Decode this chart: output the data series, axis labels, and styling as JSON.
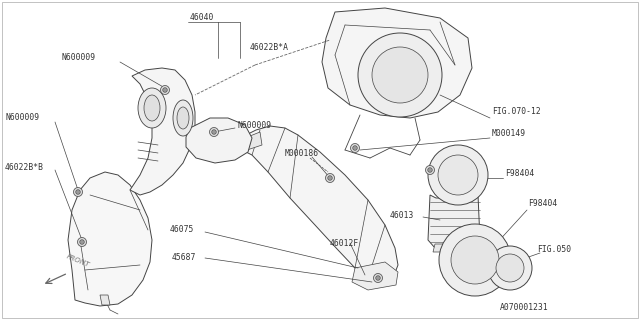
{
  "bg": "#ffffff",
  "lc": "#444444",
  "tc": "#333333",
  "lw": 0.7,
  "fs": 5.8,
  "fig_w": 6.4,
  "fig_h": 3.2,
  "dpi": 100,
  "labels": [
    [
      "46040",
      200,
      18
    ],
    [
      "46022B*A",
      248,
      48
    ],
    [
      "N600009",
      117,
      55
    ],
    [
      "N600009",
      232,
      122
    ],
    [
      "N600009",
      10,
      118
    ],
    [
      "46022B*B",
      10,
      165
    ],
    [
      "M000186",
      310,
      152
    ],
    [
      "46075",
      183,
      228
    ],
    [
      "45687",
      188,
      258
    ],
    [
      "46012F",
      335,
      240
    ],
    [
      "FIG.070-12",
      492,
      113
    ],
    [
      "M000149",
      492,
      135
    ],
    [
      "F98404",
      505,
      175
    ],
    [
      "46013",
      420,
      213
    ],
    [
      "F98404",
      527,
      205
    ],
    [
      "FIG.050",
      540,
      250
    ],
    [
      "A070001231",
      520,
      300
    ]
  ]
}
